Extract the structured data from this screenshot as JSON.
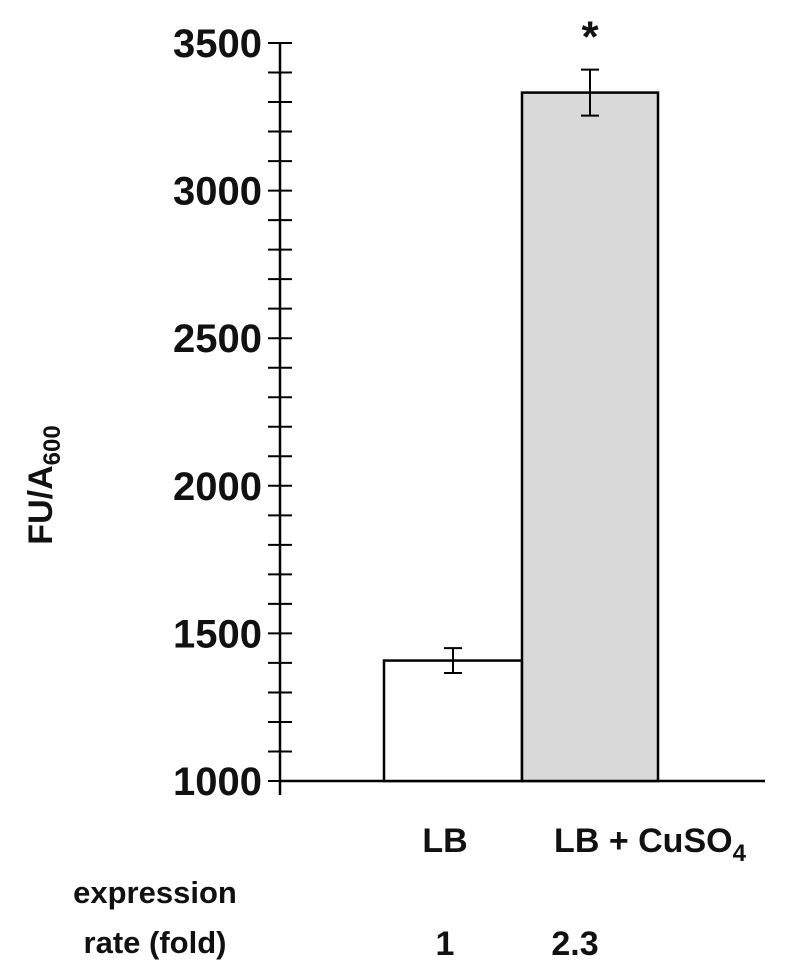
{
  "chart_data": {
    "type": "bar",
    "categories": [
      "LB",
      "LB + CuSO4"
    ],
    "category_display": [
      {
        "main": "LB",
        "sub": ""
      },
      {
        "main": "LB + CuSO",
        "sub": "4"
      }
    ],
    "values": [
      1408,
      3332
    ],
    "errors": [
      42,
      78
    ],
    "bar_colors": [
      "#ffffff",
      "#d9d9d9"
    ],
    "bar_stroke": "#000000",
    "significance": [
      "",
      "*"
    ],
    "ylabel": {
      "main": "FU/A",
      "sub": "600"
    },
    "ylim": [
      1000,
      3500
    ],
    "yticks": [
      1000,
      1500,
      2000,
      2500,
      3000,
      3500
    ],
    "minor_step": 100,
    "grid": false,
    "expression_rate": {
      "label_line1": "expression",
      "label_line2": "rate (fold)",
      "values": [
        "1",
        "2.3"
      ]
    }
  }
}
